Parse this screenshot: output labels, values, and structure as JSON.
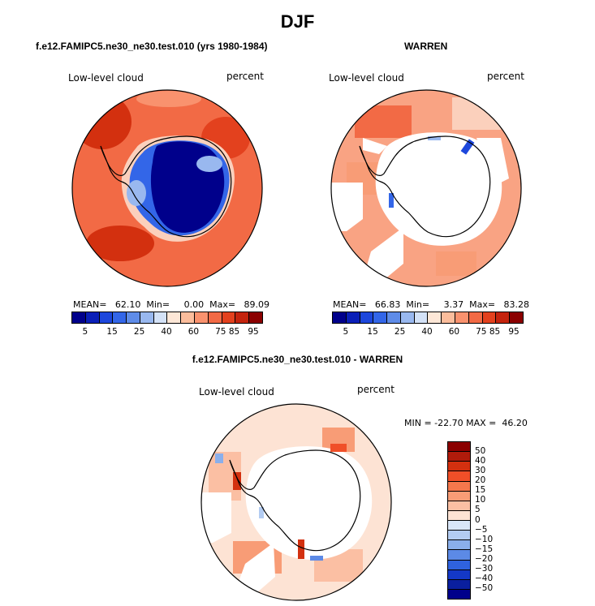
{
  "figure": {
    "title": "DJF"
  },
  "panels": [
    {
      "title": "f.e12.FAMIPC5.ne30_ne30.test.010 (yrs 1980-1984)",
      "left_label": "Low-level cloud",
      "right_label": "percent",
      "stats": "MEAN=   62.10  Min=     0.00  Max=   89.09"
    },
    {
      "title": "WARREN",
      "left_label": "Low-level cloud",
      "right_label": "percent",
      "stats": "MEAN=   66.83  Min=     3.37  Max=   83.28"
    },
    {
      "title": "f.e12.FAMIPC5.ne30_ne30.test.010 - WARREN",
      "left_label": "Low-level cloud",
      "right_label": "percent",
      "stats": "MIN = -22.70 MAX =  46.20"
    }
  ],
  "colorbar_top": {
    "tick_labels": [
      "5",
      "15",
      "25",
      "40",
      "60",
      "75",
      "85",
      "95"
    ],
    "colors": [
      "#00008b",
      "#0a1fb8",
      "#1d47dc",
      "#3366e8",
      "#5f8ce8",
      "#99b8ef",
      "#d4e2f7",
      "#fde7d7",
      "#fbbd9c",
      "#f9926e",
      "#f26a45",
      "#e3411e",
      "#c4230d",
      "#8b0000"
    ]
  },
  "colorbar_diff": {
    "tick_labels": [
      "50",
      "40",
      "30",
      "20",
      "15",
      "10",
      "5",
      "0",
      "−5",
      "−10",
      "−15",
      "−20",
      "−30",
      "−40",
      "−50"
    ],
    "colors": [
      "#8b0000",
      "#b01b0b",
      "#d3300f",
      "#f04f28",
      "#f5774c",
      "#f89c76",
      "#fbbfa3",
      "#fde3d4",
      "#d9e6f8",
      "#b3ccf2",
      "#8aafeb",
      "#5c8ae6",
      "#2f62de",
      "#1438c6",
      "#0a1f9e",
      "#00008b"
    ]
  },
  "map_colors": {
    "ocean_high": "#d3300f",
    "ocean_mid": "#f26a45",
    "ocean_light": "#f9a383",
    "ocean_pale": "#fbd0bc",
    "blue_deep": "#00008b",
    "blue_mid": "#3366e8",
    "blue_light": "#99b8ef",
    "missing": "#ffffff",
    "coast": "#000000"
  }
}
